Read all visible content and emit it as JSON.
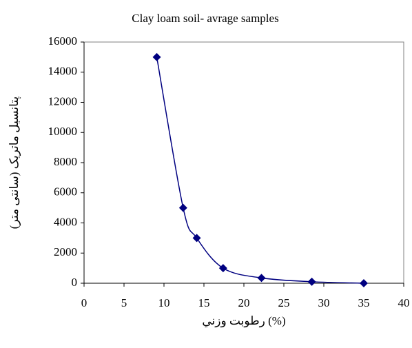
{
  "chart_data": {
    "type": "line",
    "title": "Clay loam soil- avrage samples",
    "x_label": "رطوبت وزني (%)",
    "y_label": "پتانسيل ماتريک (سانتی متر)",
    "x": [
      9.1,
      12.4,
      14.1,
      17.4,
      22.2,
      28.5,
      35
    ],
    "values": [
      15000,
      5000,
      3000,
      1000,
      350,
      100,
      0
    ],
    "color": "#000080",
    "smooth": true,
    "markers": "diamond",
    "xlim": [
      0,
      40
    ],
    "xticks": [
      0,
      5,
      10,
      15,
      20,
      25,
      30,
      35,
      40
    ],
    "ylim": [
      0,
      16000
    ],
    "yticks": [
      0,
      2000,
      4000,
      6000,
      8000,
      10000,
      12000,
      14000,
      16000
    ],
    "grid": false
  }
}
